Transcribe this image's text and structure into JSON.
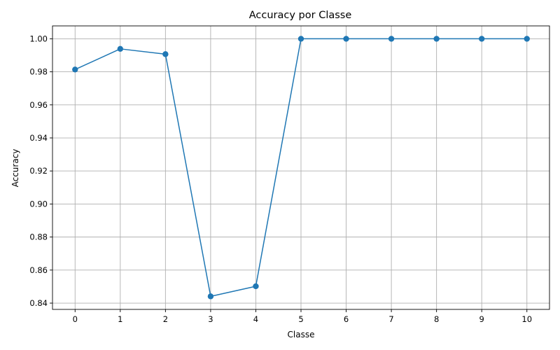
{
  "chart_data": {
    "type": "line",
    "title": "Accuracy por Classe",
    "xlabel": "Classe",
    "ylabel": "Accuracy",
    "x": [
      0,
      1,
      2,
      3,
      4,
      5,
      6,
      7,
      8,
      9,
      10
    ],
    "series": [
      {
        "values": [
          0.9814,
          0.9939,
          0.9907,
          0.8441,
          0.8502,
          1.0,
          1.0,
          1.0,
          1.0,
          1.0,
          1.0
        ],
        "color": "#1f77b4",
        "marker": "circle"
      }
    ],
    "xticks": [
      "0",
      "1",
      "2",
      "3",
      "4",
      "5",
      "6",
      "7",
      "8",
      "9",
      "10"
    ],
    "yticks": [
      "0.84",
      "0.86",
      "0.88",
      "0.90",
      "0.92",
      "0.94",
      "0.96",
      "0.98",
      "1.00"
    ],
    "xlim": [
      -0.5,
      10.5
    ],
    "ylim": [
      0.8362,
      1.0078
    ],
    "grid": true,
    "legend": "none"
  }
}
